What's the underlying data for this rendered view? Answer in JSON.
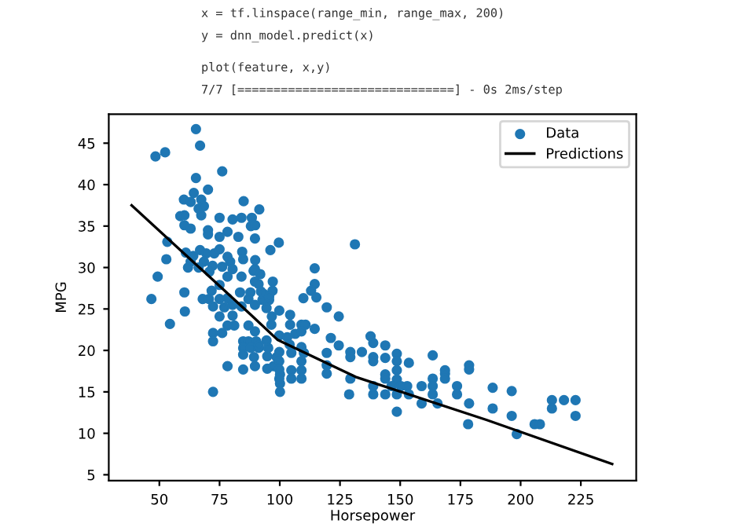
{
  "chart_data": {
    "type": "scatter",
    "xlabel": "Horsepower",
    "ylabel": "MPG",
    "annotations": [
      "x = tf.linspace(range_min, range_max, 200)",
      "y = dnn_model.predict(x)",
      "plot(feature, x,y)",
      "7/7 [==============================] - 0s 2ms/step"
    ],
    "xlim": [
      29,
      248
    ],
    "ylim": [
      4.3,
      48.5
    ],
    "xticks": [
      50,
      75,
      100,
      125,
      150,
      175,
      200,
      225
    ],
    "yticks": [
      5,
      10,
      15,
      20,
      25,
      30,
      35,
      40,
      45
    ],
    "grid": false,
    "legend": "top right",
    "series": [
      {
        "name": "Data",
        "marker": "circle",
        "color": "#1f77b4",
        "x": [
          65.2,
          66.9,
          48.4,
          52.4,
          76.1,
          65.2,
          64.3,
          70.2,
          60.2,
          63.0,
          67.4,
          85.0,
          91.5,
          66.3,
          68.5,
          58.7,
          60.4,
          67.4,
          75.0,
          80.4,
          84.1,
          88.4,
          60.4,
          63.0,
          70.2,
          70.2,
          78.3,
          75.0,
          89.7,
          88.0,
          82.8,
          53.3,
          99.6,
          66.9,
          61.0,
          64.1,
          69.5,
          72.8,
          75.0,
          78.3,
          84.4,
          84.8,
          52.9,
          63.0,
          68.5,
          72.1,
          76.1,
          79.4,
          61.9,
          66.3,
          70.8,
          80.4,
          89.7,
          49.3,
          78.3,
          84.1,
          89.7,
          91.2,
          75.0,
          60.4,
          71.7,
          83.5,
          87.8,
          92.2,
          97.0,
          46.7,
          68.0,
          70.6,
          75.0,
          78.3,
          80.4,
          87.0,
          92.8,
          95.6,
          60.6,
          72.3,
          77.0,
          84.1,
          89.7,
          96.7,
          75.0,
          80.4,
          54.4,
          72.3,
          76.1,
          72.3,
          78.3,
          81.1,
          87.0,
          89.7,
          84.8,
          87.0,
          90.2,
          84.8,
          88.0,
          91.2,
          84.8,
          89.3,
          94.8,
          78.3,
          84.8,
          89.7,
          94.8,
          97.4,
          72.3,
          100.1,
          100.1,
          100.1,
          95.2,
          98.7,
          89.8,
          96.1,
          131.2,
          89.8,
          89.1,
          91.9,
          97.1,
          114.5,
          114.5,
          109.8,
          113.0,
          115.2,
          119.5,
          124.5,
          93.4,
          95.6,
          94.5,
          99.8,
          96.5,
          104.3,
          104.3,
          109.0,
          110.7,
          114.5,
          106.4,
          109.0,
          99.8,
          103.1,
          104.1,
          109.0,
          94.5,
          91.3,
          99.8,
          104.8,
          110.0,
          119.5,
          129.3,
          134.1,
          99.8,
          109.0,
          104.8,
          109.0,
          99.8,
          99.8,
          104.8,
          109.0,
          119.5,
          119.5,
          129.3,
          121.2,
          124.5,
          137.7,
          138.8,
          143.8,
          129.3,
          138.8,
          138.8,
          143.8,
          148.6,
          148.6,
          153.6,
          163.5,
          148.6,
          143.8,
          138.8,
          143.8,
          148.6,
          150.3,
          146.4,
          152.9,
          128.8,
          138.8,
          143.8,
          148.6,
          153.6,
          158.9,
          163.5,
          163.5,
          163.5,
          158.9,
          165.5,
          168.6,
          168.6,
          168.6,
          173.6,
          173.6,
          178.6,
          178.6,
          178.6,
          148.6,
          188.4,
          196.3,
          188.4,
          196.3,
          178.2,
          198.4,
          205.8,
          208.0,
          213.0,
          213.0,
          218.0,
          222.8,
          222.8
        ],
        "values": [
          46.7,
          44.7,
          43.4,
          43.9,
          41.6,
          40.8,
          39.0,
          39.4,
          38.2,
          37.9,
          38.2,
          38.0,
          37.0,
          37.1,
          37.4,
          36.2,
          36.3,
          36.3,
          36.0,
          35.8,
          36.0,
          36.0,
          35.1,
          34.7,
          34.5,
          34.0,
          34.3,
          33.7,
          33.5,
          35.0,
          33.7,
          33.1,
          33.0,
          32.1,
          31.8,
          31.4,
          31.7,
          31.7,
          32.2,
          31.3,
          31.9,
          31.0,
          31.0,
          30.7,
          30.7,
          30.2,
          30.1,
          30.7,
          30.0,
          30.0,
          29.5,
          29.8,
          29.8,
          28.9,
          28.9,
          28.9,
          28.3,
          28.0,
          27.9,
          27.0,
          27.2,
          27.0,
          27.0,
          27.1,
          27.2,
          26.2,
          26.2,
          26.2,
          26.2,
          26.3,
          25.5,
          26.2,
          26.1,
          26.1,
          24.7,
          25.3,
          25.2,
          25.3,
          25.5,
          24.1,
          24.1,
          24.2,
          23.2,
          22.1,
          22.1,
          21.1,
          23.0,
          23.0,
          23.0,
          22.3,
          21.1,
          21.1,
          21.1,
          20.3,
          20.3,
          20.3,
          19.5,
          19.2,
          19.3,
          18.1,
          17.7,
          18.1,
          17.8,
          18.1,
          15.0,
          17.1,
          16.0,
          15.0,
          20.3,
          19.2,
          35.1,
          32.1,
          32.8,
          30.9,
          29.6,
          29.2,
          28.3,
          29.9,
          28.0,
          26.3,
          27.2,
          26.4,
          25.2,
          24.1,
          26.8,
          26.5,
          25.1,
          24.8,
          23.1,
          24.3,
          23.1,
          23.1,
          23.1,
          22.6,
          22.0,
          22.3,
          21.8,
          21.6,
          20.7,
          20.4,
          21.2,
          20.6,
          19.8,
          19.7,
          19.7,
          19.7,
          19.8,
          19.8,
          18.7,
          18.7,
          17.6,
          17.6,
          17.7,
          16.6,
          16.6,
          16.6,
          18.2,
          17.2,
          16.6,
          21.5,
          20.6,
          21.7,
          20.9,
          20.6,
          19.2,
          19.2,
          18.7,
          19.1,
          19.6,
          18.7,
          18.5,
          19.4,
          17.6,
          17.1,
          15.7,
          16.6,
          16.5,
          15.7,
          15.7,
          15.7,
          14.7,
          14.7,
          14.7,
          14.7,
          14.7,
          15.7,
          16.6,
          15.7,
          14.7,
          13.6,
          13.6,
          17.6,
          17.2,
          16.6,
          15.7,
          14.7,
          18.2,
          17.7,
          13.6,
          12.6,
          15.5,
          15.1,
          13.0,
          12.1,
          11.1,
          9.9,
          11.1,
          11.1,
          14.0,
          13.0,
          14.0,
          14.0,
          12.1
        ]
      },
      {
        "name": "Predictions",
        "type": "line",
        "marker": "none",
        "line_style": "solid",
        "color": "#000000",
        "x": [
          38.5,
          88,
          99,
          131.5,
          186,
          238
        ],
        "values": [
          37.5,
          24.3,
          21.3,
          16.8,
          11.6,
          6.3
        ]
      }
    ]
  }
}
